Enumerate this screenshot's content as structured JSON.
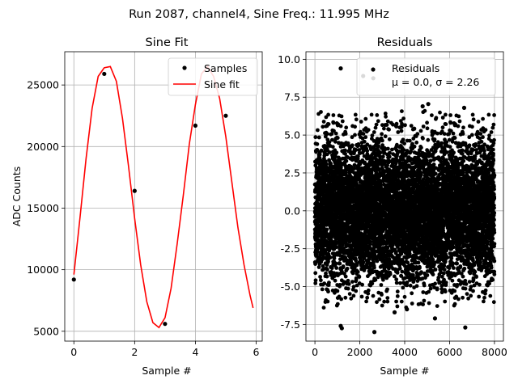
{
  "figure": {
    "suptitle": "Run 2087, channel4, Sine Freq.: 11.995 MHz"
  },
  "chart_data": [
    {
      "type": "line",
      "title": "Sine Fit",
      "xlabel": "Sample #",
      "ylabel": "ADC Counts",
      "xlim": [
        -0.3,
        6.2
      ],
      "ylim": [
        4200,
        27700
      ],
      "x_ticks": [
        0,
        2,
        4,
        6
      ],
      "y_ticks": [
        5000,
        10000,
        15000,
        20000,
        25000
      ],
      "grid": true,
      "legend_position": "top-right",
      "samples": {
        "name": "Samples",
        "color": "#000000",
        "x": [
          0,
          1,
          2,
          3,
          4,
          5
        ],
        "y": [
          9200,
          25900,
          16400,
          5600,
          21700,
          22500
        ]
      },
      "fit": {
        "name": "Sine fit",
        "color": "#ff0000",
        "x": [
          0,
          0.2,
          0.4,
          0.6,
          0.8,
          1.0,
          1.2,
          1.4,
          1.6,
          1.8,
          2.0,
          2.2,
          2.4,
          2.6,
          2.8,
          3.0,
          3.2,
          3.4,
          3.6,
          3.8,
          4.0,
          4.2,
          4.4,
          4.6,
          4.8,
          5.0,
          5.2,
          5.4,
          5.6,
          5.8,
          5.9
        ],
        "y": [
          9600,
          14200,
          19000,
          23100,
          25700,
          26400,
          26500,
          25300,
          22300,
          18400,
          14200,
          10400,
          7400,
          5700,
          5300,
          6100,
          8500,
          12100,
          16000,
          20200,
          23400,
          25900,
          26500,
          25700,
          23900,
          20800,
          17100,
          13400,
          10400,
          7900,
          6900
        ]
      }
    },
    {
      "type": "scatter",
      "title": "Residuals",
      "xlabel": "Sample #",
      "ylabel": "",
      "xlim": [
        -400,
        8400
      ],
      "ylim": [
        -8.6,
        10.5
      ],
      "x_ticks": [
        0,
        2000,
        4000,
        6000,
        8000
      ],
      "y_ticks": [
        -7.5,
        -5.0,
        -2.5,
        0.0,
        2.5,
        5.0,
        7.5,
        10.0
      ],
      "grid": true,
      "legend_position": "top-right",
      "series_name": "Residuals",
      "stats_label": "μ = 0.0, σ = 2.26",
      "color": "#000000",
      "n_points": 8000,
      "mu": 0.0,
      "sigma": 2.26,
      "outliers": [
        {
          "x": 1150,
          "y": 9.4
        },
        {
          "x": 2600,
          "y": 8.75
        },
        {
          "x": 2150,
          "y": 8.9
        },
        {
          "x": 5050,
          "y": 7.05
        },
        {
          "x": 4800,
          "y": 6.9
        },
        {
          "x": 6650,
          "y": 6.8
        },
        {
          "x": 1150,
          "y": -7.6
        },
        {
          "x": 1200,
          "y": -7.75
        },
        {
          "x": 2650,
          "y": -8.0
        },
        {
          "x": 6700,
          "y": -7.7
        },
        {
          "x": 5350,
          "y": -7.1
        },
        {
          "x": 3550,
          "y": -6.7
        },
        {
          "x": 4100,
          "y": -6.5
        }
      ]
    }
  ]
}
